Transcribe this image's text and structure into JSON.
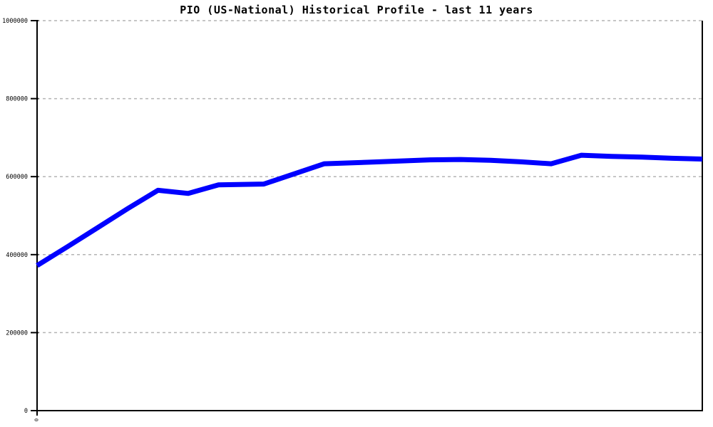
{
  "title": "PIO (US-National) Historical Profile - last 11 years",
  "colors": {
    "line": "#0000ff",
    "grid": "#b4b4b4",
    "axis": "#000000",
    "background": "#ffffff",
    "text": "#000000"
  },
  "y_axis": {
    "min": 0,
    "max": 1000000,
    "tick_step": 200000,
    "tick_labels": [
      "0",
      "200000",
      "400000",
      "600000",
      "800000",
      "1000000"
    ]
  },
  "x_axis": {
    "visible_label": "0",
    "label_rotation_deg": 90
  },
  "chart_data": {
    "type": "line",
    "title": "PIO (US-National) Historical Profile - last 11 years",
    "xlabel": "",
    "ylabel": "",
    "x_unit": "years (0 = start of 11-year window)",
    "xlim": [
      0,
      11
    ],
    "ylim": [
      0,
      1000000
    ],
    "grid": "horizontal dashed",
    "legend": "none",
    "series": [
      {
        "name": "PIO (US-National)",
        "color": "#0000ff",
        "x": [
          0,
          0.5,
          1,
          1.5,
          2,
          2.5,
          3,
          3.75,
          4.75,
          5.5,
          6.5,
          7,
          7.5,
          8,
          8.5,
          9,
          9.5,
          10,
          10.5,
          11
        ],
        "values": [
          372000,
          420000,
          469000,
          518000,
          565000,
          557000,
          579000,
          581000,
          633000,
          637000,
          643000,
          644000,
          642000,
          638000,
          633000,
          655000,
          652000,
          650000,
          647000,
          645000
        ]
      }
    ]
  }
}
